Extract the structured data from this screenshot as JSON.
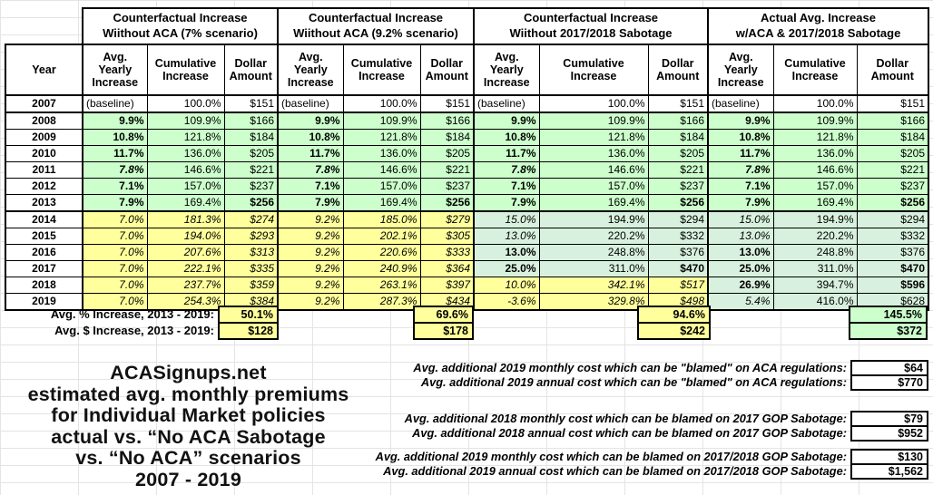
{
  "colors": {
    "bright_green": "#ccffcc",
    "muted_green": "#d8f1de",
    "yellow": "#ffff9c"
  },
  "table": {
    "year_header": "Year",
    "sub_headers": [
      "Avg. Yearly Increase",
      "Cumulative Increase",
      "Dollar Amount"
    ],
    "groups": [
      {
        "lines": [
          "Counterfactual Increase",
          "Wiithout ACA (7% scenario)"
        ]
      },
      {
        "lines": [
          "Counterfactual Increase",
          "Wiithout ACA (9.2% scenario)"
        ]
      },
      {
        "lines": [
          "Counterfactual Increase",
          "Wiithout 2017/2018 Sabotage"
        ]
      },
      {
        "lines": [
          "Actual Avg. Increase",
          "w/ACA & 2017/2018 Sabotage"
        ]
      }
    ],
    "rows": [
      {
        "year": "2007",
        "cells": [
          [
            "(baseline)",
            "w base"
          ],
          [
            "100.0%",
            "w"
          ],
          [
            "$151",
            "w"
          ],
          [
            "(baseline)",
            "w base"
          ],
          [
            "100.0%",
            "w"
          ],
          [
            "$151",
            "w"
          ],
          [
            "(baseline)",
            "w base"
          ],
          [
            "100.0%",
            "w"
          ],
          [
            "$151",
            "w"
          ],
          [
            "(baseline)",
            "w base"
          ],
          [
            "100.0%",
            "w"
          ],
          [
            "$151",
            "w"
          ]
        ]
      },
      {
        "year": "2008",
        "cells": [
          [
            "9.9%",
            "g b"
          ],
          [
            "109.9%",
            "g"
          ],
          [
            "$166",
            "g"
          ],
          [
            "9.9%",
            "g b"
          ],
          [
            "109.9%",
            "g"
          ],
          [
            "$166",
            "g"
          ],
          [
            "9.9%",
            "g b"
          ],
          [
            "109.9%",
            "g"
          ],
          [
            "$166",
            "g"
          ],
          [
            "9.9%",
            "g b"
          ],
          [
            "109.9%",
            "g"
          ],
          [
            "$166",
            "g"
          ]
        ]
      },
      {
        "year": "2009",
        "cells": [
          [
            "10.8%",
            "g b"
          ],
          [
            "121.8%",
            "g"
          ],
          [
            "$184",
            "g"
          ],
          [
            "10.8%",
            "g b"
          ],
          [
            "121.8%",
            "g"
          ],
          [
            "$184",
            "g"
          ],
          [
            "10.8%",
            "g b"
          ],
          [
            "121.8%",
            "g"
          ],
          [
            "$184",
            "g"
          ],
          [
            "10.8%",
            "g b"
          ],
          [
            "121.8%",
            "g"
          ],
          [
            "$184",
            "g"
          ]
        ]
      },
      {
        "year": "2010",
        "cells": [
          [
            "11.7%",
            "g b"
          ],
          [
            "136.0%",
            "g"
          ],
          [
            "$205",
            "g"
          ],
          [
            "11.7%",
            "g b"
          ],
          [
            "136.0%",
            "g"
          ],
          [
            "$205",
            "g"
          ],
          [
            "11.7%",
            "g b"
          ],
          [
            "136.0%",
            "g"
          ],
          [
            "$205",
            "g"
          ],
          [
            "11.7%",
            "g b"
          ],
          [
            "136.0%",
            "g"
          ],
          [
            "$205",
            "g"
          ]
        ]
      },
      {
        "year": "2011",
        "cells": [
          [
            "7.8%",
            "g b i"
          ],
          [
            "146.6%",
            "g"
          ],
          [
            "$221",
            "g"
          ],
          [
            "7.8%",
            "g b i"
          ],
          [
            "146.6%",
            "g"
          ],
          [
            "$221",
            "g"
          ],
          [
            "7.8%",
            "g b i"
          ],
          [
            "146.6%",
            "g"
          ],
          [
            "$221",
            "g"
          ],
          [
            "7.8%",
            "g b i"
          ],
          [
            "146.6%",
            "g"
          ],
          [
            "$221",
            "g"
          ]
        ]
      },
      {
        "year": "2012",
        "cells": [
          [
            "7.1%",
            "g b"
          ],
          [
            "157.0%",
            "g"
          ],
          [
            "$237",
            "g"
          ],
          [
            "7.1%",
            "g b"
          ],
          [
            "157.0%",
            "g"
          ],
          [
            "$237",
            "g"
          ],
          [
            "7.1%",
            "g b"
          ],
          [
            "157.0%",
            "g"
          ],
          [
            "$237",
            "g"
          ],
          [
            "7.1%",
            "g b"
          ],
          [
            "157.0%",
            "g"
          ],
          [
            "$237",
            "g"
          ]
        ]
      },
      {
        "year": "2013",
        "cells": [
          [
            "7.9%",
            "g b"
          ],
          [
            "169.4%",
            "g"
          ],
          [
            "$256",
            "g b"
          ],
          [
            "7.9%",
            "g b"
          ],
          [
            "169.4%",
            "g"
          ],
          [
            "$256",
            "g b"
          ],
          [
            "7.9%",
            "g b"
          ],
          [
            "169.4%",
            "g"
          ],
          [
            "$256",
            "g b"
          ],
          [
            "7.9%",
            "g b"
          ],
          [
            "169.4%",
            "g"
          ],
          [
            "$256",
            "g b"
          ]
        ]
      },
      {
        "year": "2014",
        "cells": [
          [
            "7.0%",
            "y i"
          ],
          [
            "181.3%",
            "y i"
          ],
          [
            "$274",
            "y i"
          ],
          [
            "9.2%",
            "y i"
          ],
          [
            "185.0%",
            "y i"
          ],
          [
            "$279",
            "y i"
          ],
          [
            "15.0%",
            "m i"
          ],
          [
            "194.9%",
            "m"
          ],
          [
            "$294",
            "m"
          ],
          [
            "15.0%",
            "m i"
          ],
          [
            "194.9%",
            "m"
          ],
          [
            "$294",
            "m"
          ]
        ]
      },
      {
        "year": "2015",
        "cells": [
          [
            "7.0%",
            "y i"
          ],
          [
            "194.0%",
            "y i"
          ],
          [
            "$293",
            "y i"
          ],
          [
            "9.2%",
            "y i"
          ],
          [
            "202.1%",
            "y i"
          ],
          [
            "$305",
            "y i"
          ],
          [
            "13.0%",
            "m i"
          ],
          [
            "220.2%",
            "m"
          ],
          [
            "$332",
            "m"
          ],
          [
            "13.0%",
            "m i"
          ],
          [
            "220.2%",
            "m"
          ],
          [
            "$332",
            "m"
          ]
        ]
      },
      {
        "year": "2016",
        "cells": [
          [
            "7.0%",
            "y i"
          ],
          [
            "207.6%",
            "y i"
          ],
          [
            "$313",
            "y i"
          ],
          [
            "9.2%",
            "y i"
          ],
          [
            "220.6%",
            "y i"
          ],
          [
            "$333",
            "y i"
          ],
          [
            "13.0%",
            "m b"
          ],
          [
            "248.8%",
            "m"
          ],
          [
            "$376",
            "m"
          ],
          [
            "13.0%",
            "m b"
          ],
          [
            "248.8%",
            "m"
          ],
          [
            "$376",
            "m"
          ]
        ]
      },
      {
        "year": "2017",
        "cells": [
          [
            "7.0%",
            "y i"
          ],
          [
            "222.1%",
            "y i"
          ],
          [
            "$335",
            "y i"
          ],
          [
            "9.2%",
            "y i"
          ],
          [
            "240.9%",
            "y i"
          ],
          [
            "$364",
            "y i"
          ],
          [
            "25.0%",
            "m b"
          ],
          [
            "311.0%",
            "m"
          ],
          [
            "$470",
            "m b"
          ],
          [
            "25.0%",
            "m b"
          ],
          [
            "311.0%",
            "m"
          ],
          [
            "$470",
            "m b"
          ]
        ]
      },
      {
        "year": "2018",
        "cells": [
          [
            "7.0%",
            "y i"
          ],
          [
            "237.7%",
            "y i"
          ],
          [
            "$359",
            "y i"
          ],
          [
            "9.2%",
            "y i"
          ],
          [
            "263.1%",
            "y i"
          ],
          [
            "$397",
            "y i"
          ],
          [
            "10.0%",
            "y i"
          ],
          [
            "342.1%",
            "y i"
          ],
          [
            "$517",
            "y i"
          ],
          [
            "26.9%",
            "m b"
          ],
          [
            "394.7%",
            "m"
          ],
          [
            "$596",
            "m b"
          ]
        ]
      },
      {
        "year": "2019",
        "cells": [
          [
            "7.0%",
            "y i"
          ],
          [
            "254.3%",
            "y i"
          ],
          [
            "$384",
            "y i"
          ],
          [
            "9.2%",
            "y i"
          ],
          [
            "287.3%",
            "y i"
          ],
          [
            "$434",
            "y i"
          ],
          [
            "-3.6%",
            "y i"
          ],
          [
            "329.8%",
            "y i"
          ],
          [
            "$498",
            "y i"
          ],
          [
            "5.4%",
            "m i"
          ],
          [
            "416.0%",
            "m"
          ],
          [
            "$628",
            "m"
          ]
        ]
      }
    ]
  },
  "summary": {
    "pct": {
      "label": "Avg. % Increase, 2013 - 2019:",
      "values": [
        [
          "50.1%",
          "y"
        ],
        [
          "69.6%",
          "y"
        ],
        [
          "94.6%",
          "y"
        ],
        [
          "145.5%",
          "g"
        ]
      ]
    },
    "dollar": {
      "label": "Avg. $ Increase, 2013 - 2019:",
      "values": [
        [
          "$128",
          "y"
        ],
        [
          "$178",
          "y"
        ],
        [
          "$242",
          "y"
        ],
        [
          "$372",
          "g"
        ]
      ]
    }
  },
  "title_block": {
    "lines": [
      "ACASignups.net",
      "estimated avg. monthly premiums",
      "for Individual Market policies",
      "actual vs. “No ACA Sabotage",
      "vs. “No ACA” scenarios",
      "2007 - 2019"
    ]
  },
  "annotations": [
    {
      "rows": [
        {
          "label": "Avg. additional 2019 monthly cost which can be \"blamed\" on ACA regulations:",
          "value": "$64"
        },
        {
          "label": "Avg. additional 2019 annual cost which can be \"blamed\" on ACA regulations:",
          "value": "$770"
        }
      ]
    },
    {
      "rows": [
        {
          "label": "Avg. additional 2018 monthly cost which can be blamed on 2017 GOP Sabotage:",
          "value": "$79"
        },
        {
          "label": "Avg. additional 2018 annual cost which can be blamed on 2017 GOP Sabotage:",
          "value": "$952"
        }
      ]
    },
    {
      "rows": [
        {
          "label": "Avg. additional 2019 monthly cost which can be blamed on 2017/2018 GOP Sabotage:",
          "value": "$130"
        },
        {
          "label": "Avg. additional 2019 annual cost which can be blamed on 2017/2018 GOP Sabotage:",
          "value": "$1,562"
        }
      ]
    }
  ]
}
